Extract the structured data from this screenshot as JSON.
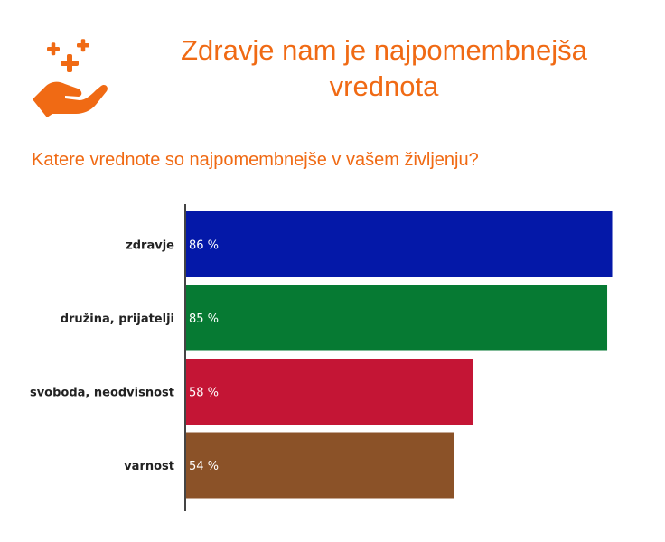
{
  "header": {
    "title": "Zdravje nam je najpomembnejša\nvrednota",
    "question": "Katere vrednote so najpomembnejše v vašem življenju?"
  },
  "logo": {
    "icon": "hand-with-plus-signs-icon",
    "color": "#f06a14"
  },
  "chart_data": {
    "type": "bar",
    "orientation": "horizontal",
    "categories": [
      "zdravje",
      "družina, prijatelji",
      "svoboda, neodvisnost",
      "varnost"
    ],
    "values": [
      86,
      85,
      58,
      54
    ],
    "value_labels": [
      "86 %",
      "85 %",
      "58 %",
      "54 %"
    ],
    "colors": [
      "#0418a8",
      "#067a33",
      "#c41535",
      "#8b5228"
    ],
    "xlim": [
      0,
      87
    ],
    "grid": false,
    "legend": "none"
  }
}
